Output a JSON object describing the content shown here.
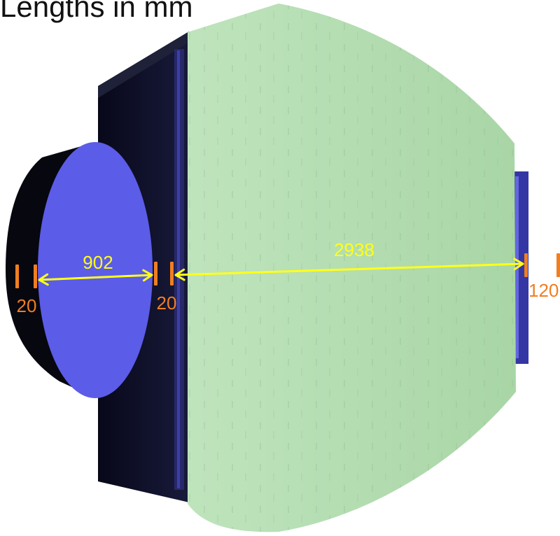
{
  "title": "Lengths in mm",
  "colors": {
    "dark_body": "#0b0b1c",
    "plate_blue": "#5b5ce8",
    "light_green": "#b4ddb2",
    "dim_arrow": "#ffff1a",
    "thickness_marker": "#f07e22"
  },
  "dimensions": {
    "front_depth": "902",
    "main_length": "2938"
  },
  "thicknesses": {
    "front_plate": "20",
    "middle_plate": "20",
    "back_plate": "120"
  }
}
